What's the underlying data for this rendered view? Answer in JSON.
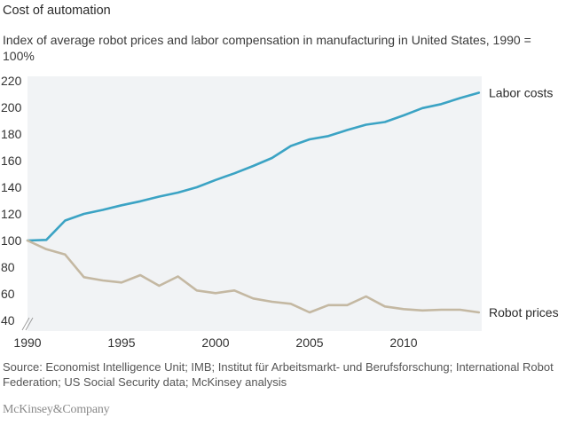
{
  "chart_data": {
    "type": "line",
    "title": "Cost of automation",
    "subtitle": "Index of average robot prices and labor compensation in manufacturing in United States, 1990 = 100%",
    "xlabel": "",
    "ylabel": "",
    "x": [
      1990,
      1991,
      1992,
      1993,
      1994,
      1995,
      1996,
      1997,
      1998,
      1999,
      2000,
      2001,
      2002,
      2003,
      2004,
      2005,
      2006,
      2007,
      2008,
      2009,
      2010,
      2011,
      2012,
      2013,
      2014
    ],
    "xlim": [
      1990,
      2014.15
    ],
    "ylim": [
      40,
      220
    ],
    "x_ticks": [
      1990,
      1995,
      2000,
      2005,
      2010
    ],
    "x_tick_labels": [
      "1990",
      "1995",
      "2000",
      "2005",
      "2010"
    ],
    "y_ticks": [
      40,
      60,
      80,
      100,
      120,
      140,
      160,
      180,
      200,
      220
    ],
    "y_tick_labels": [
      "40",
      "60",
      "80",
      "100",
      "120",
      "140",
      "160",
      "180",
      "200",
      "220"
    ],
    "axis_break": true,
    "grid": false,
    "legend": "direct-labels-right",
    "series": [
      {
        "name": "Labor costs",
        "color": "#3ba3c4",
        "values": [
          100,
          100.5,
          115,
          120,
          123,
          126.5,
          129.5,
          133,
          136,
          140,
          145.5,
          150.5,
          156,
          162,
          171,
          176,
          178.5,
          183,
          187,
          189,
          194,
          199.5,
          202.5,
          207,
          211
        ]
      },
      {
        "name": "Robot prices",
        "color": "#c4b8a2",
        "values": [
          100,
          93.5,
          89.5,
          72.5,
          70,
          68.5,
          74,
          66,
          73,
          62.5,
          60.5,
          62.5,
          56.5,
          54,
          52.5,
          46,
          51.5,
          51.5,
          58,
          50.5,
          48.5,
          47.5,
          48,
          48,
          46
        ]
      }
    ]
  },
  "plot_background": "#f1f3f5",
  "source": "Source: Economist Intelligence Unit; IMB; Institut für Arbeitsmarkt- und Berufsforschung; International Robot Federation; US Social Security data; McKinsey analysis",
  "brand": "McKinsey&Company"
}
